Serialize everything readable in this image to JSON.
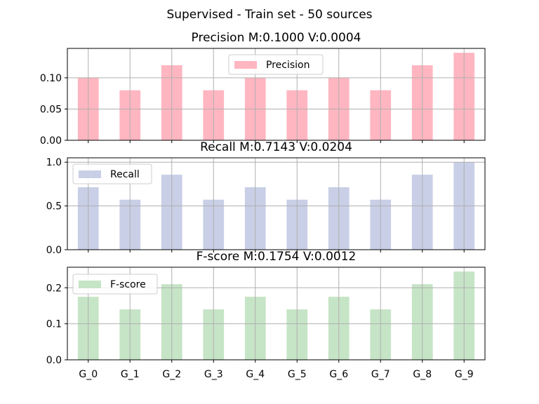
{
  "figure_title": "Supervised - Train set - 50 sources",
  "chart_data": [
    {
      "type": "bar",
      "title": "Precision M:0.1000 V:0.0004",
      "categories": [
        "G_0",
        "G_1",
        "G_2",
        "G_3",
        "G_4",
        "G_5",
        "G_6",
        "G_7",
        "G_8",
        "G_9"
      ],
      "series": [
        {
          "name": "Precision",
          "values": [
            0.1,
            0.08,
            0.12,
            0.08,
            0.1,
            0.08,
            0.1,
            0.08,
            0.12,
            0.14
          ]
        }
      ],
      "ylim": [
        0,
        0.147
      ],
      "yticks": [
        0.0,
        0.05,
        0.1
      ],
      "ytick_labels": [
        "0.00",
        "0.05",
        "0.10"
      ],
      "show_xtick_labels": false,
      "grid": true,
      "legend_position": "upper center",
      "color": "#ffb6c1"
    },
    {
      "type": "bar",
      "title": "Recall M:0.7143 V:0.0204",
      "categories": [
        "G_0",
        "G_1",
        "G_2",
        "G_3",
        "G_4",
        "G_5",
        "G_6",
        "G_7",
        "G_8",
        "G_9"
      ],
      "series": [
        {
          "name": "Recall",
          "values": [
            0.7143,
            0.5714,
            0.8571,
            0.5714,
            0.7143,
            0.5714,
            0.7143,
            0.5714,
            0.8571,
            1.0
          ]
        }
      ],
      "ylim": [
        0,
        1.05
      ],
      "yticks": [
        0.0,
        0.5,
        1.0
      ],
      "ytick_labels": [
        "0.0",
        "0.5",
        "1.0"
      ],
      "show_xtick_labels": false,
      "grid": true,
      "legend_position": "upper left",
      "color": "#c9cfe6"
    },
    {
      "type": "bar",
      "title": "F-score M:0.1754 V:0.0012",
      "categories": [
        "G_0",
        "G_1",
        "G_2",
        "G_3",
        "G_4",
        "G_5",
        "G_6",
        "G_7",
        "G_8",
        "G_9"
      ],
      "series": [
        {
          "name": "F-score",
          "values": [
            0.175,
            0.14,
            0.21,
            0.14,
            0.175,
            0.14,
            0.175,
            0.14,
            0.21,
            0.245
          ]
        }
      ],
      "ylim": [
        0,
        0.257
      ],
      "yticks": [
        0.0,
        0.1,
        0.2
      ],
      "ytick_labels": [
        "0.0",
        "0.1",
        "0.2"
      ],
      "show_xtick_labels": true,
      "grid": true,
      "legend_position": "upper left",
      "color": "#c6e4c6"
    }
  ]
}
